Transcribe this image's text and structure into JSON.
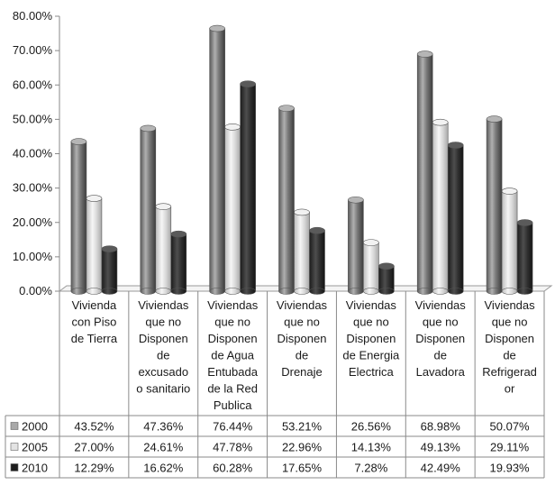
{
  "chart_data": {
    "type": "bar",
    "categories": [
      [
        "Vivienda",
        "con Piso",
        "de Tierra"
      ],
      [
        "Viviendas",
        "que no",
        "Disponen",
        "de",
        "excusado",
        "o sanitario"
      ],
      [
        "Viviendas",
        "que no",
        "Disponen",
        "de Agua",
        "Entubada",
        "de la Red",
        "Publica"
      ],
      [
        "Viviendas",
        "que no",
        "Disponen",
        "de",
        "Drenaje"
      ],
      [
        "Viviendas",
        "que no",
        "Disponen",
        "de Energia",
        "Electrica"
      ],
      [
        "Viviendas",
        "que no",
        "Disponen",
        "de",
        "Lavadora"
      ],
      [
        "Viviendas",
        "que no",
        "Disponen",
        "de",
        "Refrigerad",
        "or"
      ]
    ],
    "series": [
      {
        "name": "2000",
        "values": [
          43.52,
          47.36,
          76.44,
          53.21,
          26.56,
          68.98,
          50.07
        ],
        "labels": [
          "43.52%",
          "47.36%",
          "76.44%",
          "53.21%",
          "26.56%",
          "68.98%",
          "50.07%"
        ],
        "color": "#8c8c8c"
      },
      {
        "name": "2005",
        "values": [
          27.0,
          24.61,
          47.78,
          22.96,
          14.13,
          49.13,
          29.11
        ],
        "labels": [
          "27.00%",
          "24.61%",
          "47.78%",
          "22.96%",
          "14.13%",
          "49.13%",
          "29.11%"
        ],
        "color": "#dcdcdc"
      },
      {
        "name": "2010",
        "values": [
          12.29,
          16.62,
          60.28,
          17.65,
          7.28,
          42.49,
          19.93
        ],
        "labels": [
          "12.29%",
          "16.62%",
          "60.28%",
          "17.65%",
          "7.28%",
          "42.49%",
          "19.93%"
        ],
        "color": "#2e2e2e"
      }
    ],
    "yticks": [
      "0.00%",
      "10.00%",
      "20.00%",
      "30.00%",
      "40.00%",
      "50.00%",
      "60.00%",
      "70.00%",
      "80.00%"
    ],
    "ylim": [
      0,
      80
    ],
    "title": "",
    "xlabel": "",
    "ylabel": "",
    "grid": false,
    "legend": "data-table-left"
  }
}
